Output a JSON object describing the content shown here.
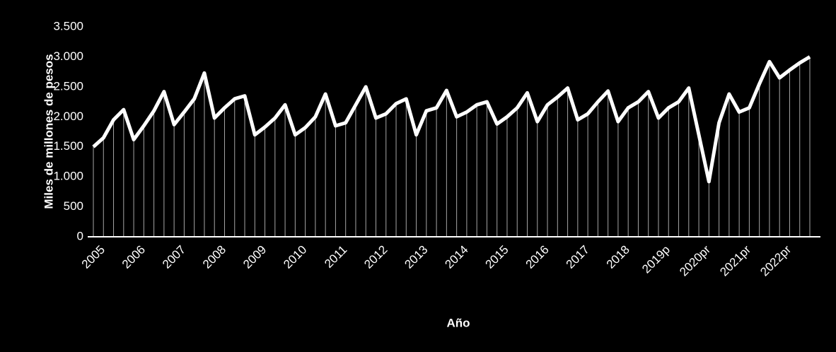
{
  "chart_data": {
    "type": "line",
    "y_label": "Miles de millones de pesos",
    "x_label": "Año",
    "categories": [
      "2005",
      null,
      null,
      null,
      "2006",
      null,
      null,
      null,
      "2007",
      null,
      null,
      null,
      "2008",
      null,
      null,
      null,
      "2009",
      null,
      null,
      null,
      "2010",
      null,
      null,
      null,
      "2011",
      null,
      null,
      null,
      "2012",
      null,
      null,
      null,
      "2013",
      null,
      null,
      null,
      "2014",
      null,
      null,
      null,
      "2015",
      null,
      null,
      null,
      "2016",
      null,
      null,
      null,
      "2017",
      null,
      null,
      null,
      "2018",
      null,
      null,
      null,
      "2019p",
      null,
      null,
      null,
      "2020pr",
      null,
      null,
      null,
      "2021pr",
      null,
      null,
      null,
      "2022pr",
      null,
      null,
      null
    ],
    "series": [
      {
        "color": "#ffffff",
        "drop_line_color": "#a6a6a6",
        "values": [
          1500,
          1650,
          1950,
          2120,
          1620,
          1850,
          2100,
          2420,
          1870,
          2080,
          2300,
          2730,
          1980,
          2150,
          2300,
          2350,
          1700,
          1830,
          1980,
          2200,
          1700,
          1820,
          2000,
          2380,
          1850,
          1900,
          2200,
          2500,
          1980,
          2050,
          2220,
          2300,
          1700,
          2100,
          2150,
          2440,
          2000,
          2080,
          2200,
          2250,
          1880,
          2000,
          2150,
          2400,
          1920,
          2200,
          2330,
          2480,
          1950,
          2050,
          2250,
          2430,
          1920,
          2150,
          2250,
          2420,
          1980,
          2150,
          2250,
          2480,
          1700,
          920,
          1900,
          2380,
          2080,
          2150,
          2550,
          2920,
          2650,
          2780,
          2900,
          3000
        ]
      }
    ],
    "ylim": [
      0,
      3500
    ],
    "yticks": [
      0,
      {
        "value": 500,
        "label": "500"
      },
      {
        "value": 1000,
        "label": "1.000"
      },
      {
        "value": 1500,
        "label": "1.500"
      },
      {
        "value": 2000,
        "label": "2.000"
      },
      {
        "value": 2500,
        "label": "2.500"
      },
      {
        "value": 3000,
        "label": "3.000"
      },
      {
        "value": 3500,
        "label": "3.500"
      }
    ]
  }
}
